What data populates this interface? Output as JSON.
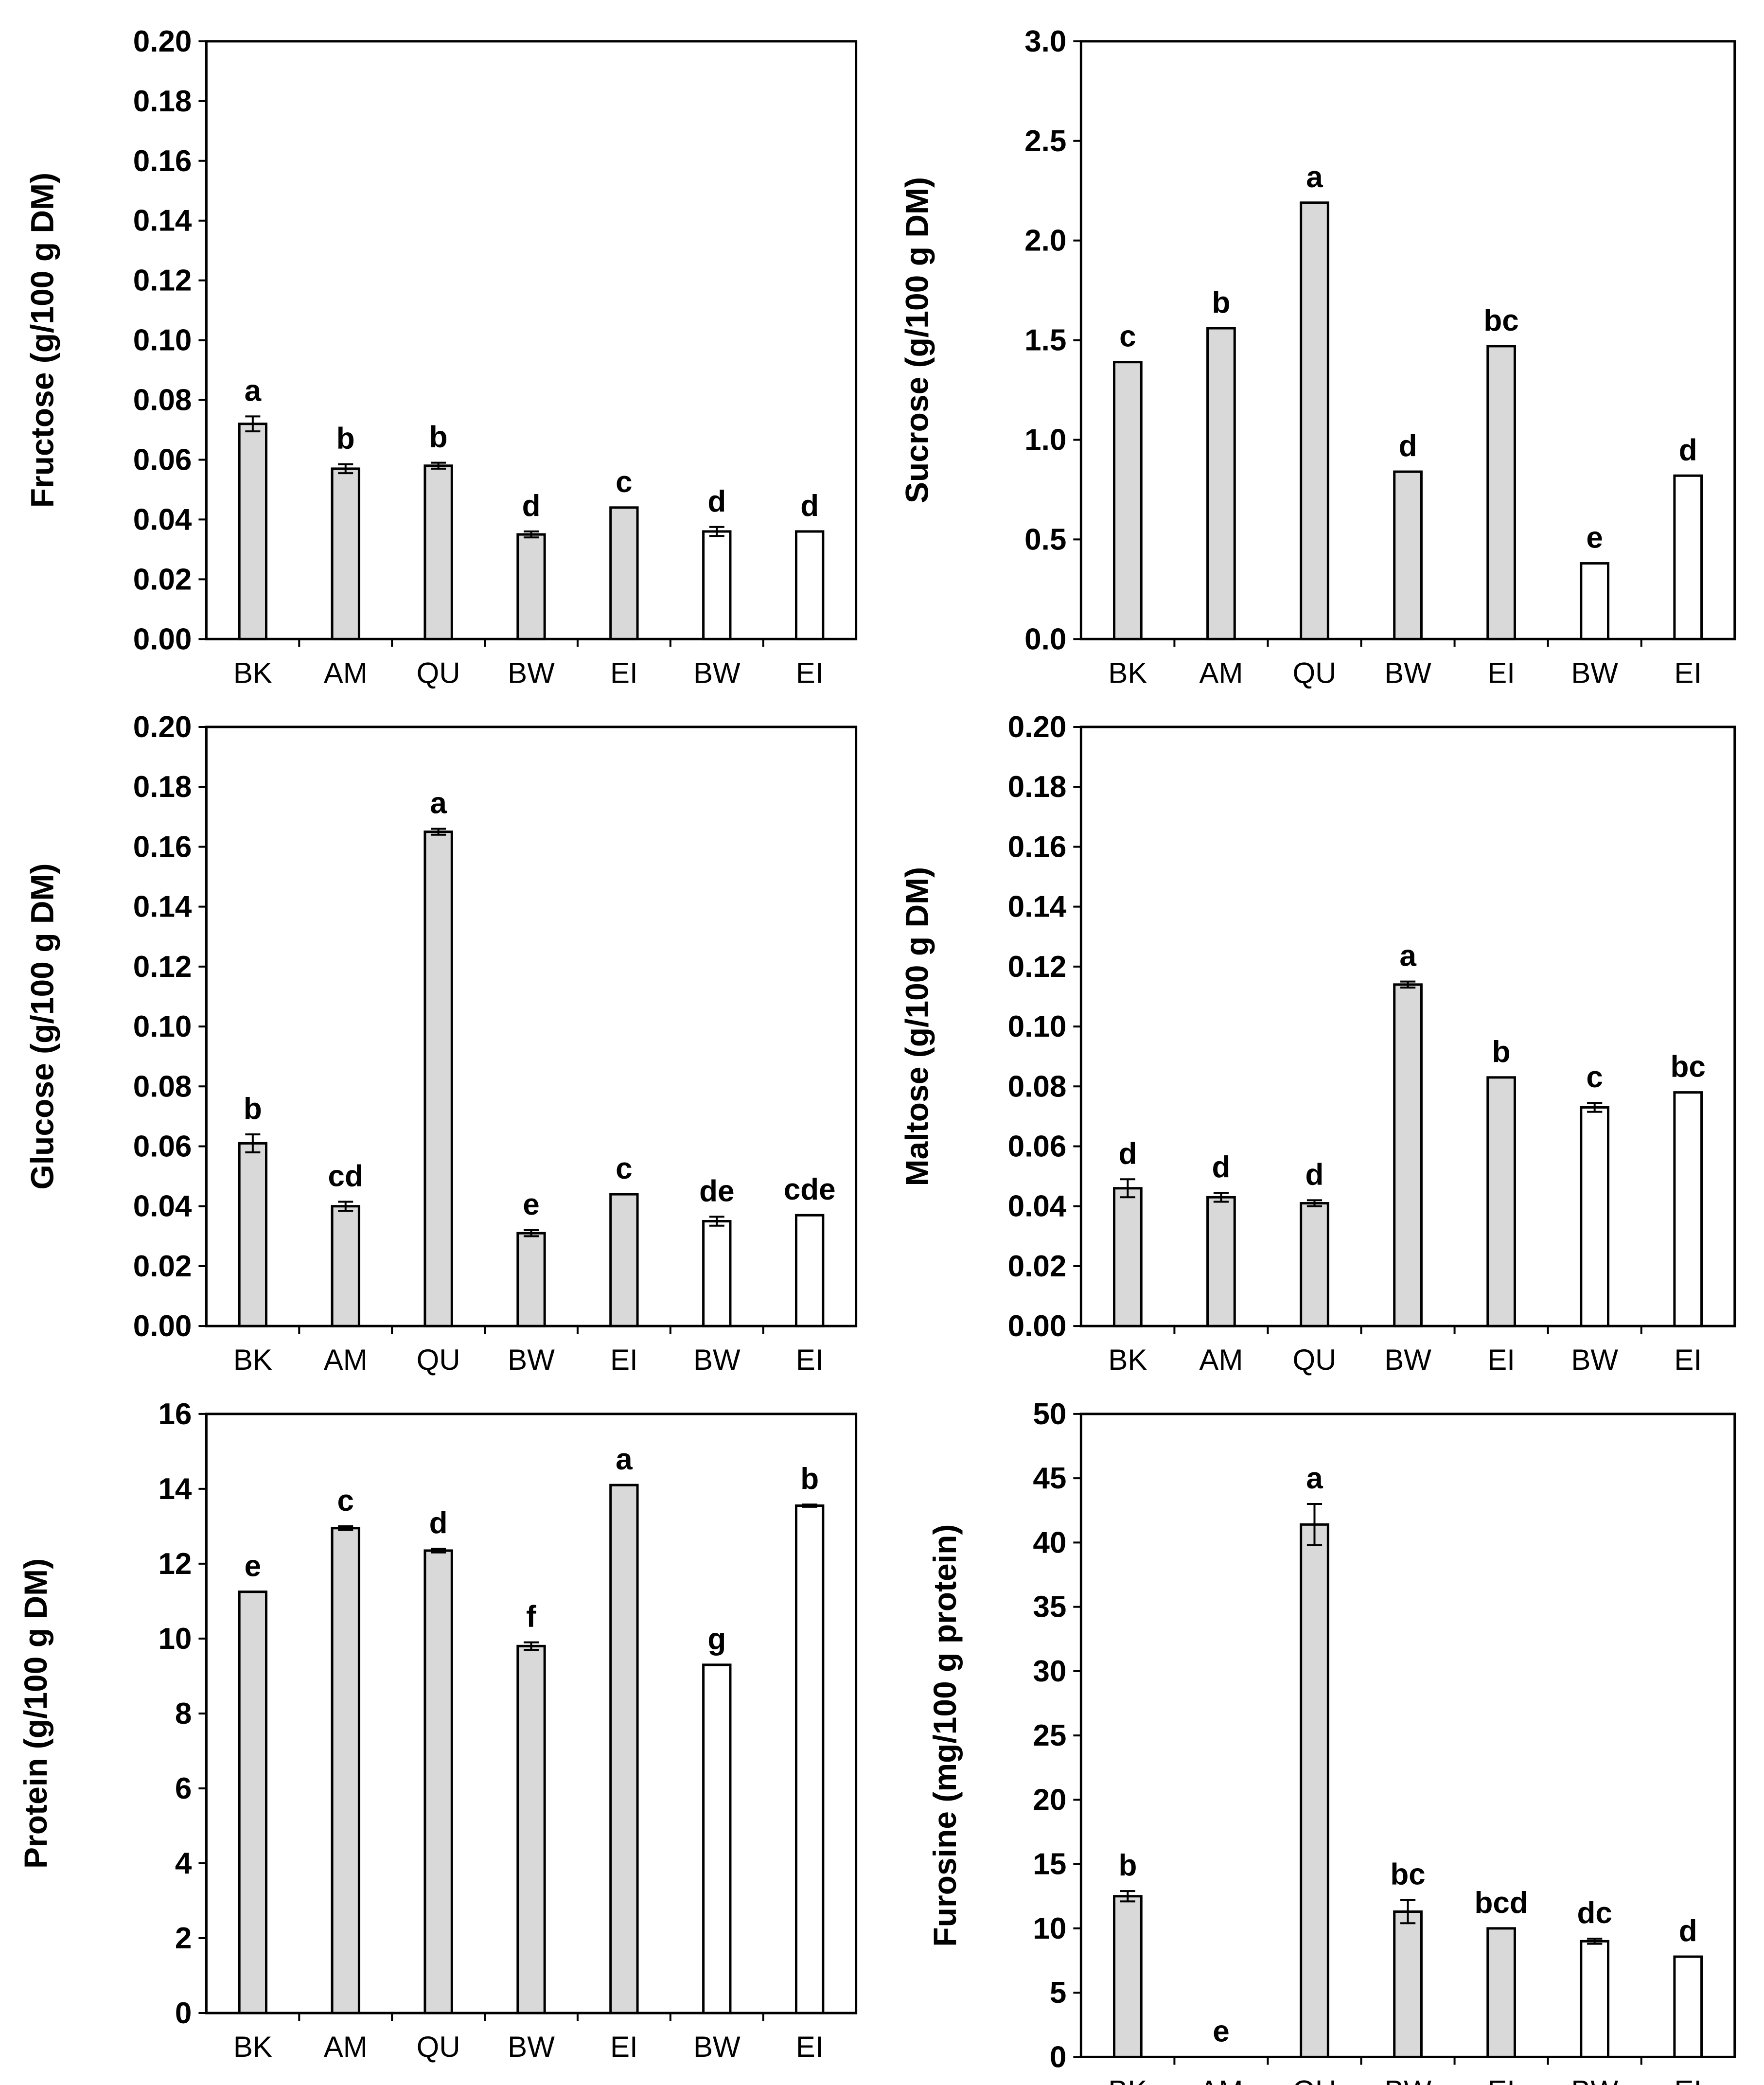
{
  "colors": {
    "processed": "#d9d9d9",
    "raw": "#ffffff",
    "stroke": "#000000"
  },
  "chart_data": [
    {
      "type": "bar",
      "ylabel": "Fructose (g/100 g DM)",
      "ylim": [
        0,
        0.2
      ],
      "yticks": [
        "0.00",
        "0.02",
        "0.04",
        "0.06",
        "0.08",
        "0.10",
        "0.12",
        "0.14",
        "0.16",
        "0.18",
        "0.20"
      ],
      "categories": [
        "BK",
        "AM",
        "QU",
        "BW",
        "EI",
        "BW",
        "EI"
      ],
      "values": [
        0.072,
        0.057,
        0.058,
        0.035,
        0.044,
        0.036,
        0.036
      ],
      "errors": [
        0.0025,
        0.0015,
        0.001,
        0.001,
        0,
        0.0015,
        0
      ],
      "fill": [
        "processed",
        "processed",
        "processed",
        "processed",
        "processed",
        "raw",
        "raw"
      ],
      "letters": [
        "a",
        "b",
        "b",
        "d",
        "c",
        "d",
        "d"
      ]
    },
    {
      "type": "bar",
      "ylabel": "Sucrose (g/100 g DM)",
      "ylim": [
        0,
        3.0
      ],
      "yticks": [
        "0.0",
        "0.5",
        "1.0",
        "1.5",
        "2.0",
        "2.5",
        "3.0"
      ],
      "categories": [
        "BK",
        "AM",
        "QU",
        "BW",
        "EI",
        "BW",
        "EI"
      ],
      "values": [
        1.39,
        1.56,
        2.19,
        0.84,
        1.47,
        0.38,
        0.82
      ],
      "errors": [
        0,
        0,
        0,
        0,
        0,
        0,
        0
      ],
      "fill": [
        "processed",
        "processed",
        "processed",
        "processed",
        "processed",
        "raw",
        "raw"
      ],
      "letters": [
        "c",
        "b",
        "a",
        "d",
        "bc",
        "e",
        "d"
      ]
    },
    {
      "type": "bar",
      "ylabel": "Glucose (g/100 g DM)",
      "ylim": [
        0,
        0.2
      ],
      "yticks": [
        "0.00",
        "0.02",
        "0.04",
        "0.06",
        "0.08",
        "0.10",
        "0.12",
        "0.14",
        "0.16",
        "0.18",
        "0.20"
      ],
      "categories": [
        "BK",
        "AM",
        "QU",
        "BW",
        "EI",
        "BW",
        "EI"
      ],
      "values": [
        0.061,
        0.04,
        0.165,
        0.031,
        0.044,
        0.035,
        0.037
      ],
      "errors": [
        0.003,
        0.0015,
        0.001,
        0.001,
        0,
        0.0015,
        0
      ],
      "fill": [
        "processed",
        "processed",
        "processed",
        "processed",
        "processed",
        "raw",
        "raw"
      ],
      "letters": [
        "b",
        "cd",
        "a",
        "e",
        "c",
        "de",
        "cde"
      ]
    },
    {
      "type": "bar",
      "ylabel": "Maltose (g/100 g DM)",
      "ylim": [
        0,
        0.2
      ],
      "yticks": [
        "0.00",
        "0.02",
        "0.04",
        "0.06",
        "0.08",
        "0.10",
        "0.12",
        "0.14",
        "0.16",
        "0.18",
        "0.20"
      ],
      "categories": [
        "BK",
        "AM",
        "QU",
        "BW",
        "EI",
        "BW",
        "EI"
      ],
      "values": [
        0.046,
        0.043,
        0.041,
        0.114,
        0.083,
        0.073,
        0.078
      ],
      "errors": [
        0.003,
        0.0015,
        0.001,
        0.001,
        0,
        0.0015,
        0
      ],
      "fill": [
        "processed",
        "processed",
        "processed",
        "processed",
        "processed",
        "raw",
        "raw"
      ],
      "letters": [
        "d",
        "d",
        "d",
        "a",
        "b",
        "c",
        "bc"
      ]
    },
    {
      "type": "bar",
      "ylabel": "Protein (g/100 g DM)",
      "ylim": [
        0,
        16
      ],
      "yticks": [
        "0",
        "2",
        "4",
        "6",
        "8",
        "10",
        "12",
        "14",
        "16"
      ],
      "categories": [
        "BK",
        "AM",
        "QU",
        "BW",
        "EI",
        "BW",
        "EI"
      ],
      "values": [
        11.25,
        12.95,
        12.35,
        9.8,
        14.1,
        9.3,
        13.55
      ],
      "errors": [
        0,
        0.05,
        0.05,
        0.1,
        0,
        0,
        0.03
      ],
      "fill": [
        "processed",
        "processed",
        "processed",
        "processed",
        "processed",
        "raw",
        "raw"
      ],
      "letters": [
        "e",
        "c",
        "d",
        "f",
        "a",
        "g",
        "b"
      ]
    },
    {
      "type": "bar",
      "ylabel": "Furosine (mg/100 g protein)",
      "ylim": [
        0,
        50
      ],
      "yticks": [
        "0",
        "5",
        "10",
        "15",
        "20",
        "25",
        "30",
        "35",
        "40",
        "45",
        "50"
      ],
      "categories": [
        "BK",
        "AM",
        "QU",
        "BW",
        "EI",
        "BW",
        "EI"
      ],
      "values": [
        12.5,
        0,
        41.4,
        11.3,
        10.0,
        9.0,
        7.8
      ],
      "errors": [
        0.4,
        0,
        1.6,
        0.9,
        0,
        0.2,
        0
      ],
      "fill": [
        "processed",
        "processed",
        "processed",
        "processed",
        "processed",
        "raw",
        "raw"
      ],
      "letters": [
        "b",
        "e",
        "a",
        "bc",
        "bcd",
        "dc",
        "d"
      ]
    }
  ]
}
